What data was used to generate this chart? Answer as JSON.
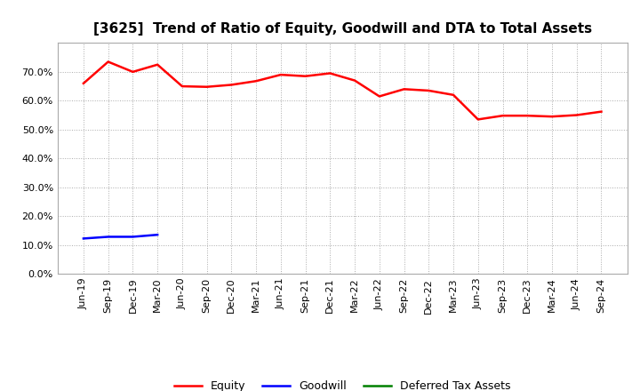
{
  "title": "[3625]  Trend of Ratio of Equity, Goodwill and DTA to Total Assets",
  "x_labels": [
    "Jun-19",
    "Sep-19",
    "Dec-19",
    "Mar-20",
    "Jun-20",
    "Sep-20",
    "Dec-20",
    "Mar-21",
    "Jun-21",
    "Sep-21",
    "Dec-21",
    "Mar-22",
    "Jun-22",
    "Sep-22",
    "Dec-22",
    "Mar-23",
    "Jun-23",
    "Sep-23",
    "Dec-23",
    "Mar-24",
    "Jun-24",
    "Sep-24"
  ],
  "equity": [
    0.66,
    0.735,
    0.7,
    0.725,
    0.65,
    0.648,
    0.655,
    0.668,
    0.69,
    0.685,
    0.695,
    0.67,
    0.615,
    0.64,
    0.635,
    0.62,
    0.535,
    0.548,
    0.548,
    0.545,
    0.55,
    0.562
  ],
  "goodwill": [
    0.122,
    0.128,
    0.128,
    0.135,
    null,
    null,
    null,
    null,
    null,
    null,
    null,
    null,
    null,
    null,
    null,
    null,
    null,
    null,
    null,
    null,
    null,
    null
  ],
  "dta": [
    null,
    null,
    null,
    null,
    null,
    null,
    null,
    null,
    null,
    null,
    null,
    null,
    null,
    null,
    null,
    null,
    null,
    null,
    null,
    null,
    null,
    null
  ],
  "equity_color": "#ff0000",
  "goodwill_color": "#0000ff",
  "dta_color": "#008000",
  "fig_bg_color": "#ffffff",
  "plot_bg_color": "#ffffff",
  "ylim": [
    0.0,
    0.8
  ],
  "yticks": [
    0.0,
    0.1,
    0.2,
    0.3,
    0.4,
    0.5,
    0.6,
    0.7
  ],
  "legend_labels": [
    "Equity",
    "Goodwill",
    "Deferred Tax Assets"
  ],
  "grid_color": "#aaaaaa",
  "title_fontsize": 11,
  "tick_fontsize": 8
}
